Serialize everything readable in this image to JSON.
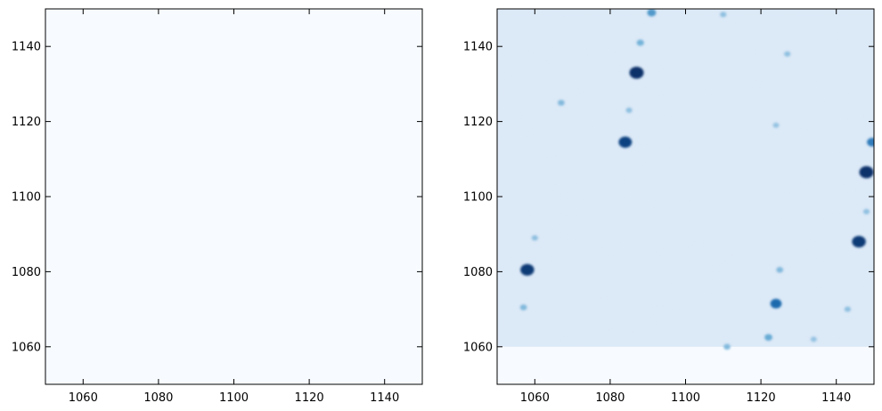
{
  "chart_data": [
    {
      "type": "heatmap",
      "title": "",
      "xlabel": "",
      "ylabel": "",
      "xlim": [
        1050,
        1150
      ],
      "ylim": [
        1050,
        1150
      ],
      "x_ticks": [
        1060,
        1080,
        1100,
        1120,
        1140
      ],
      "y_ticks": [
        1060,
        1080,
        1100,
        1120,
        1140
      ],
      "colormap": "Blues",
      "background_color": "#f7fbff",
      "description_of_content": "uniform, no features",
      "features": []
    },
    {
      "type": "heatmap",
      "title": "",
      "xlabel": "",
      "ylabel": "",
      "xlim": [
        1050,
        1150
      ],
      "ylim": [
        1050,
        1150
      ],
      "x_ticks": [
        1060,
        1080,
        1100,
        1120,
        1140
      ],
      "y_ticks": [
        1060,
        1080,
        1100,
        1120,
        1140
      ],
      "colormap": "Blues",
      "background_color": "#dbe8f6",
      "empty_band_below_y": 1060,
      "empty_band_color": "#f7fbff",
      "features": [
        {
          "x": 1091,
          "y": 1149,
          "intensity": 0.45
        },
        {
          "x": 1110,
          "y": 1148.5,
          "intensity": 0.2
        },
        {
          "x": 1088,
          "y": 1141,
          "intensity": 0.3
        },
        {
          "x": 1127,
          "y": 1138,
          "intensity": 0.2
        },
        {
          "x": 1087,
          "y": 1133,
          "intensity": 1.0
        },
        {
          "x": 1067,
          "y": 1125,
          "intensity": 0.25
        },
        {
          "x": 1085,
          "y": 1123,
          "intensity": 0.2
        },
        {
          "x": 1124,
          "y": 1119,
          "intensity": 0.18
        },
        {
          "x": 1084,
          "y": 1114.5,
          "intensity": 0.9
        },
        {
          "x": 1149.5,
          "y": 1114.5,
          "intensity": 0.6
        },
        {
          "x": 1148,
          "y": 1106.5,
          "intensity": 1.0
        },
        {
          "x": 1148,
          "y": 1096,
          "intensity": 0.2
        },
        {
          "x": 1060,
          "y": 1089,
          "intensity": 0.2
        },
        {
          "x": 1146,
          "y": 1088,
          "intensity": 0.95
        },
        {
          "x": 1058,
          "y": 1080.5,
          "intensity": 0.95
        },
        {
          "x": 1125,
          "y": 1080.5,
          "intensity": 0.25
        },
        {
          "x": 1057,
          "y": 1070.5,
          "intensity": 0.25
        },
        {
          "x": 1124,
          "y": 1071.5,
          "intensity": 0.7
        },
        {
          "x": 1143,
          "y": 1070,
          "intensity": 0.2
        },
        {
          "x": 1122,
          "y": 1062.5,
          "intensity": 0.35
        },
        {
          "x": 1111,
          "y": 1060,
          "intensity": 0.25
        },
        {
          "x": 1134,
          "y": 1062,
          "intensity": 0.18
        }
      ]
    }
  ]
}
